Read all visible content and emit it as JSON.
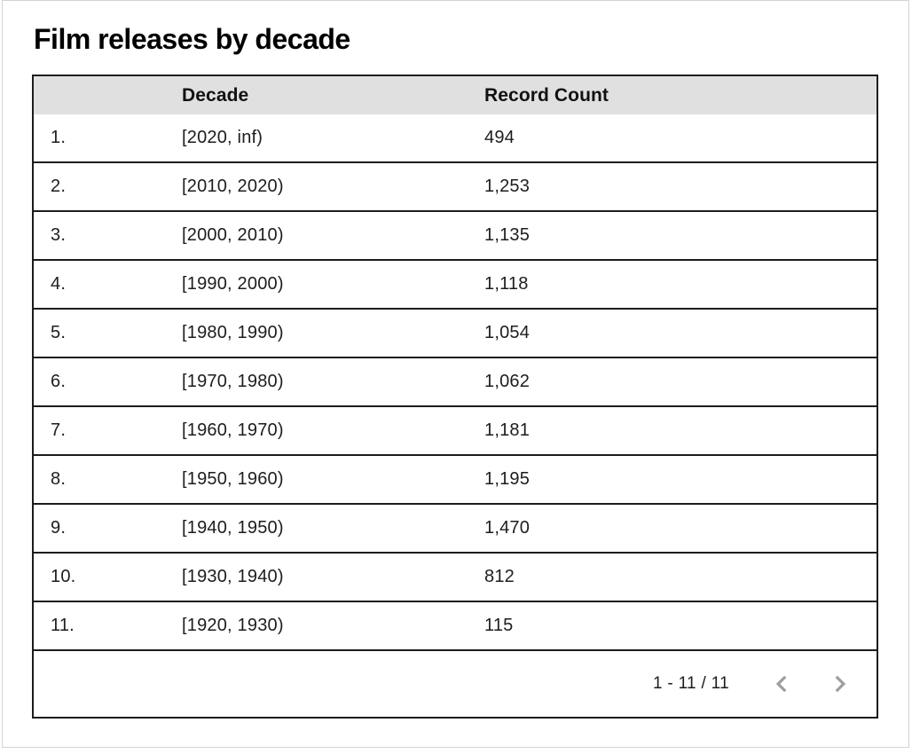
{
  "page": {
    "title": "Film releases by decade"
  },
  "colors": {
    "header_bg": "#e0e0e0",
    "table_border": "#1c1c1c",
    "chevron": "#9e9e9e",
    "title_text": "#000000",
    "body_text": "#1d1d1d"
  },
  "table": {
    "columns": {
      "row_number": "",
      "decade": "Decade",
      "record_count": "Record Count"
    },
    "rows": [
      {
        "index": "1.",
        "decade": "[2020, inf)",
        "count": "494"
      },
      {
        "index": "2.",
        "decade": "[2010, 2020)",
        "count": "1,253"
      },
      {
        "index": "3.",
        "decade": "[2000, 2010)",
        "count": "1,135"
      },
      {
        "index": "4.",
        "decade": "[1990, 2000)",
        "count": "1,118"
      },
      {
        "index": "5.",
        "decade": "[1980, 1990)",
        "count": "1,054"
      },
      {
        "index": "6.",
        "decade": "[1970, 1980)",
        "count": "1,062"
      },
      {
        "index": "7.",
        "decade": "[1960, 1970)",
        "count": "1,181"
      },
      {
        "index": "8.",
        "decade": "[1950, 1960)",
        "count": "1,195"
      },
      {
        "index": "9.",
        "decade": "[1940, 1950)",
        "count": "1,470"
      },
      {
        "index": "10.",
        "decade": "[1930, 1940)",
        "count": "812"
      },
      {
        "index": "11.",
        "decade": "[1920, 1930)",
        "count": "115"
      }
    ],
    "pagination": {
      "range_label": "1 - 11 / 11"
    }
  },
  "chart_data": {
    "type": "table",
    "title": "Film releases by decade",
    "columns": [
      "Decade",
      "Record Count"
    ],
    "rows": [
      [
        "[2020, inf)",
        494
      ],
      [
        "[2010, 2020)",
        1253
      ],
      [
        "[2000, 2010)",
        1135
      ],
      [
        "[1990, 2000)",
        1118
      ],
      [
        "[1980, 1990)",
        1054
      ],
      [
        "[1970, 1980)",
        1062
      ],
      [
        "[1960, 1970)",
        1181
      ],
      [
        "[1950, 1960)",
        1195
      ],
      [
        "[1940, 1950)",
        1470
      ],
      [
        "[1930, 1940)",
        812
      ],
      [
        "[1920, 1930)",
        115
      ]
    ],
    "pagination": "1 - 11 / 11"
  }
}
